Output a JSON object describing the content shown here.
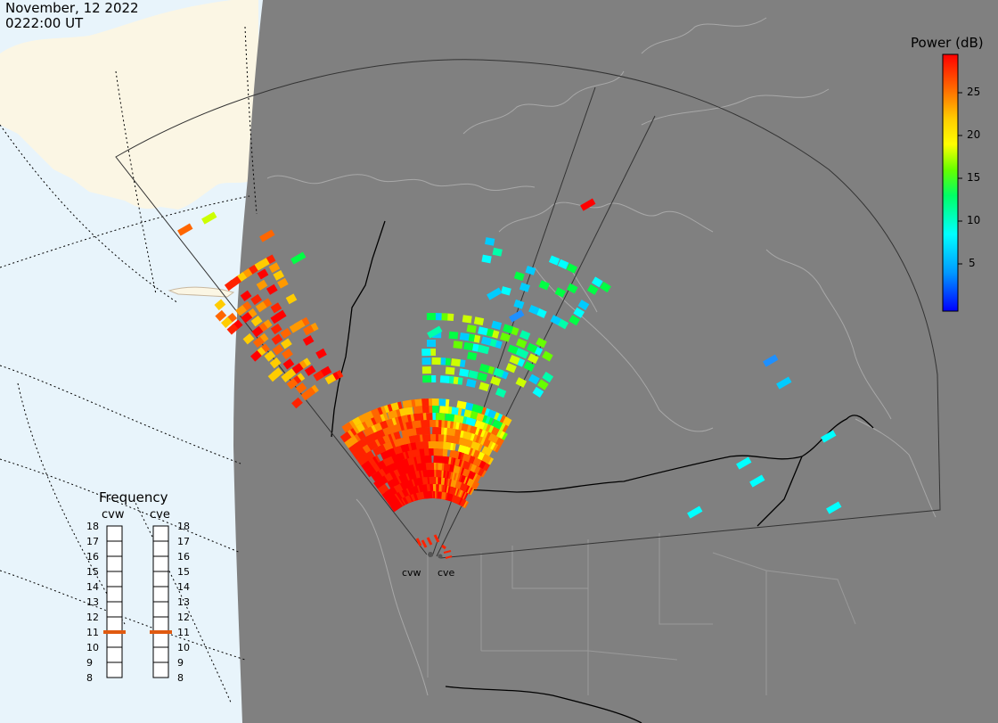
{
  "timestamp": {
    "date": "November, 12 2022",
    "time": "0222:00 UT"
  },
  "colorbar": {
    "title": "Power (dB)",
    "ticks": [
      "25",
      "20",
      "15",
      "10",
      "5"
    ],
    "tick_values": [
      25,
      20,
      15,
      10,
      5
    ],
    "range": [
      0,
      30
    ],
    "colors": [
      "#0000ff",
      "#0066ff",
      "#00ccff",
      "#00ffcc",
      "#00ff66",
      "#33ff00",
      "#99ff00",
      "#ffff00",
      "#ffcc00",
      "#ff8800",
      "#ff4400",
      "#ff0000"
    ]
  },
  "frequency_panel": {
    "title": "Frequency",
    "radars": [
      {
        "name": "cvw",
        "value_mhz": 11
      },
      {
        "name": "cve",
        "value_mhz": 11
      }
    ],
    "scale": [
      "18",
      "17",
      "16",
      "15",
      "14",
      "13",
      "12",
      "11",
      "10",
      "9",
      "8"
    ],
    "marker_color": "#e05a10"
  },
  "stations": [
    {
      "name": "cvw"
    },
    {
      "name": "cve"
    }
  ],
  "map_colors": {
    "ocean": "#e8f4fb",
    "land_outside": "#fbf6e4",
    "night_shade": "#808080",
    "borders": "#000000",
    "coastlines": "#a8a8a8"
  }
}
